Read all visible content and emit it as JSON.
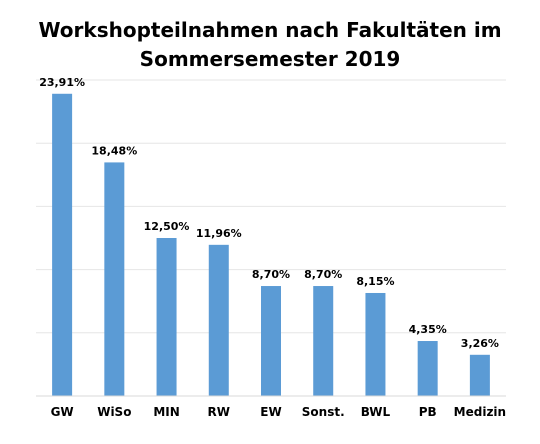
{
  "chart_data": {
    "type": "bar",
    "title_line1": "Workshopteilnahmen nach Fakultäten im",
    "title_line2": "Sommersemester 2019",
    "categories": [
      "GW",
      "WiSo",
      "MIN",
      "RW",
      "EW",
      "Sonst.",
      "BWL",
      "PB",
      "Medizin"
    ],
    "values": [
      23.91,
      18.48,
      12.5,
      11.96,
      8.7,
      8.7,
      8.15,
      4.35,
      3.26
    ],
    "value_labels": [
      "23,91%",
      "18,48%",
      "12,50%",
      "11,96%",
      "8,70%",
      "8,70%",
      "8,15%",
      "4,35%",
      "3,26%"
    ],
    "ylim": [
      0,
      25
    ],
    "grid": true,
    "bar_color": "#5b9bd5",
    "grid_color": "#e6e6e6"
  }
}
